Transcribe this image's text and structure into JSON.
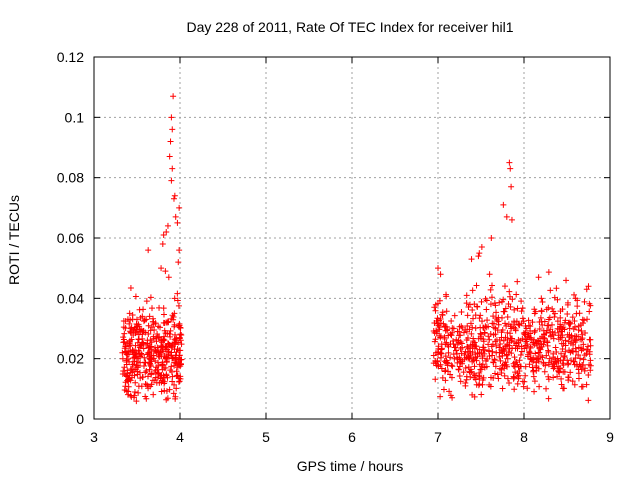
{
  "chart_data": {
    "type": "scatter",
    "title": "Day 228 of 2011, Rate Of TEC Index for receiver hil1",
    "xlabel": "GPS time / hours",
    "ylabel": "ROTI / TECUs",
    "xlim": [
      3,
      9
    ],
    "ylim": [
      0,
      0.12
    ],
    "x_ticks": [
      3,
      4,
      5,
      6,
      7,
      8,
      9
    ],
    "x_tick_labels": [
      "3",
      "4",
      "5",
      "6",
      "7",
      "8",
      "9"
    ],
    "y_ticks": [
      0,
      0.02,
      0.04,
      0.06,
      0.08,
      0.1,
      0.12
    ],
    "y_tick_labels": [
      "0",
      "0.02",
      "0.04",
      "0.06",
      "0.08",
      "0.1",
      "0.12"
    ],
    "grid": true,
    "marker": "+",
    "marker_color": "#ff0000",
    "clusters": [
      {
        "x_range": [
          3.33,
          4.02
        ],
        "y_range": [
          0.004,
          0.045
        ],
        "y_typical": 0.018,
        "points": 420
      },
      {
        "x_range": [
          6.95,
          8.78
        ],
        "y_range": [
          0.005,
          0.05
        ],
        "y_typical": 0.022,
        "points": 760
      }
    ],
    "outliers": [
      {
        "x": 3.92,
        "y": 0.107
      },
      {
        "x": 3.9,
        "y": 0.1
      },
      {
        "x": 3.91,
        "y": 0.096
      },
      {
        "x": 3.89,
        "y": 0.092
      },
      {
        "x": 3.88,
        "y": 0.087
      },
      {
        "x": 3.91,
        "y": 0.083
      },
      {
        "x": 3.9,
        "y": 0.079
      },
      {
        "x": 3.94,
        "y": 0.074
      },
      {
        "x": 3.93,
        "y": 0.073
      },
      {
        "x": 3.99,
        "y": 0.07
      },
      {
        "x": 3.95,
        "y": 0.067
      },
      {
        "x": 3.97,
        "y": 0.065
      },
      {
        "x": 3.86,
        "y": 0.064
      },
      {
        "x": 3.84,
        "y": 0.062
      },
      {
        "x": 3.81,
        "y": 0.061
      },
      {
        "x": 3.8,
        "y": 0.058
      },
      {
        "x": 3.63,
        "y": 0.056
      },
      {
        "x": 3.99,
        "y": 0.056
      },
      {
        "x": 3.78,
        "y": 0.05
      },
      {
        "x": 3.83,
        "y": 0.049
      },
      {
        "x": 3.98,
        "y": 0.052
      },
      {
        "x": 3.87,
        "y": 0.047
      },
      {
        "x": 7.83,
        "y": 0.085
      },
      {
        "x": 7.84,
        "y": 0.083
      },
      {
        "x": 7.85,
        "y": 0.077
      },
      {
        "x": 7.76,
        "y": 0.071
      },
      {
        "x": 7.86,
        "y": 0.066
      },
      {
        "x": 7.8,
        "y": 0.067
      },
      {
        "x": 7.62,
        "y": 0.06
      },
      {
        "x": 7.51,
        "y": 0.057
      },
      {
        "x": 7.48,
        "y": 0.055
      },
      {
        "x": 7.47,
        "y": 0.054
      },
      {
        "x": 7.39,
        "y": 0.053
      },
      {
        "x": 7.0,
        "y": 0.05
      },
      {
        "x": 7.03,
        "y": 0.048
      },
      {
        "x": 7.6,
        "y": 0.048
      },
      {
        "x": 8.17,
        "y": 0.047
      },
      {
        "x": 8.75,
        "y": 0.044
      },
      {
        "x": 8.73,
        "y": 0.043
      },
      {
        "x": 8.6,
        "y": 0.04
      }
    ]
  }
}
